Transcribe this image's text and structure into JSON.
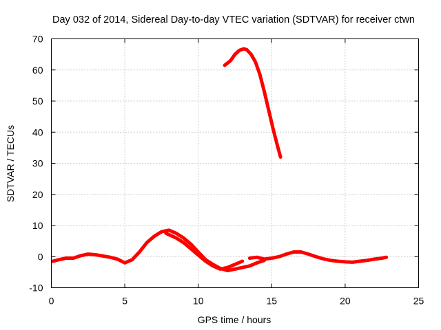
{
  "chart_data": {
    "type": "line",
    "title": "Day 032 of 2014, Sidereal Day-to-day VTEC variation (SDTVAR) for receiver ctwn",
    "xlabel": "GPS time / hours",
    "ylabel": "SDTVAR / TECUs",
    "xlim": [
      0,
      25
    ],
    "ylim": [
      -10,
      70
    ],
    "xticks": [
      0,
      5,
      10,
      15,
      20,
      25
    ],
    "yticks": [
      -10,
      0,
      10,
      20,
      30,
      40,
      50,
      60,
      70
    ],
    "grid": true,
    "legend": "none",
    "series_color": "#ff0000",
    "series": [
      {
        "name": "segment-1",
        "x": [
          0.1,
          0.5,
          1.0,
          1.5,
          2.0,
          2.5,
          3.0,
          3.5,
          4.0,
          4.5,
          5.0,
          5.5,
          6.0,
          6.5,
          7.0,
          7.5,
          8.0,
          8.5,
          9.0,
          9.5,
          10.0,
          10.5,
          11.0,
          11.5,
          12.0,
          12.5,
          13.0,
          13.5,
          14.0,
          14.5
        ],
        "y": [
          -1.5,
          -1.0,
          -0.5,
          -0.5,
          0.3,
          0.8,
          0.6,
          0.2,
          -0.2,
          -0.8,
          -2.0,
          -1.0,
          1.5,
          4.5,
          6.5,
          8.0,
          8.5,
          7.5,
          6.0,
          4.0,
          1.5,
          -1.0,
          -2.5,
          -3.8,
          -4.5,
          -4.0,
          -3.5,
          -3.0,
          -2.0,
          -1.2
        ]
      },
      {
        "name": "segment-2",
        "x": [
          7.8,
          8.5,
          9.0,
          9.5,
          10.0,
          10.5,
          11.0,
          11.5,
          12.0,
          12.5,
          13.0
        ],
        "y": [
          7.5,
          6.0,
          4.5,
          2.5,
          0.5,
          -1.5,
          -3.0,
          -4.0,
          -3.5,
          -2.5,
          -1.5
        ]
      },
      {
        "name": "segment-3",
        "x": [
          13.5,
          14.0,
          14.5,
          15.0,
          15.5,
          16.0,
          16.5,
          17.0,
          17.5,
          18.0,
          18.5,
          19.0,
          19.5,
          20.0,
          20.5,
          21.0,
          21.5,
          22.0,
          22.5,
          22.8
        ],
        "y": [
          -0.5,
          -0.2,
          -0.8,
          -0.5,
          0.0,
          0.8,
          1.5,
          1.5,
          0.8,
          0.0,
          -0.7,
          -1.2,
          -1.5,
          -1.7,
          -1.8,
          -1.5,
          -1.2,
          -0.8,
          -0.5,
          -0.2
        ]
      },
      {
        "name": "segment-4",
        "x": [
          11.8,
          12.2,
          12.5,
          12.8,
          13.1,
          13.3,
          13.6,
          13.9,
          14.2,
          14.5,
          14.8,
          15.1,
          15.4,
          15.6
        ],
        "y": [
          61.5,
          63.0,
          65.0,
          66.3,
          66.8,
          66.5,
          65.0,
          62.5,
          58.5,
          53.0,
          47.0,
          41.0,
          35.5,
          32.0
        ]
      }
    ]
  }
}
